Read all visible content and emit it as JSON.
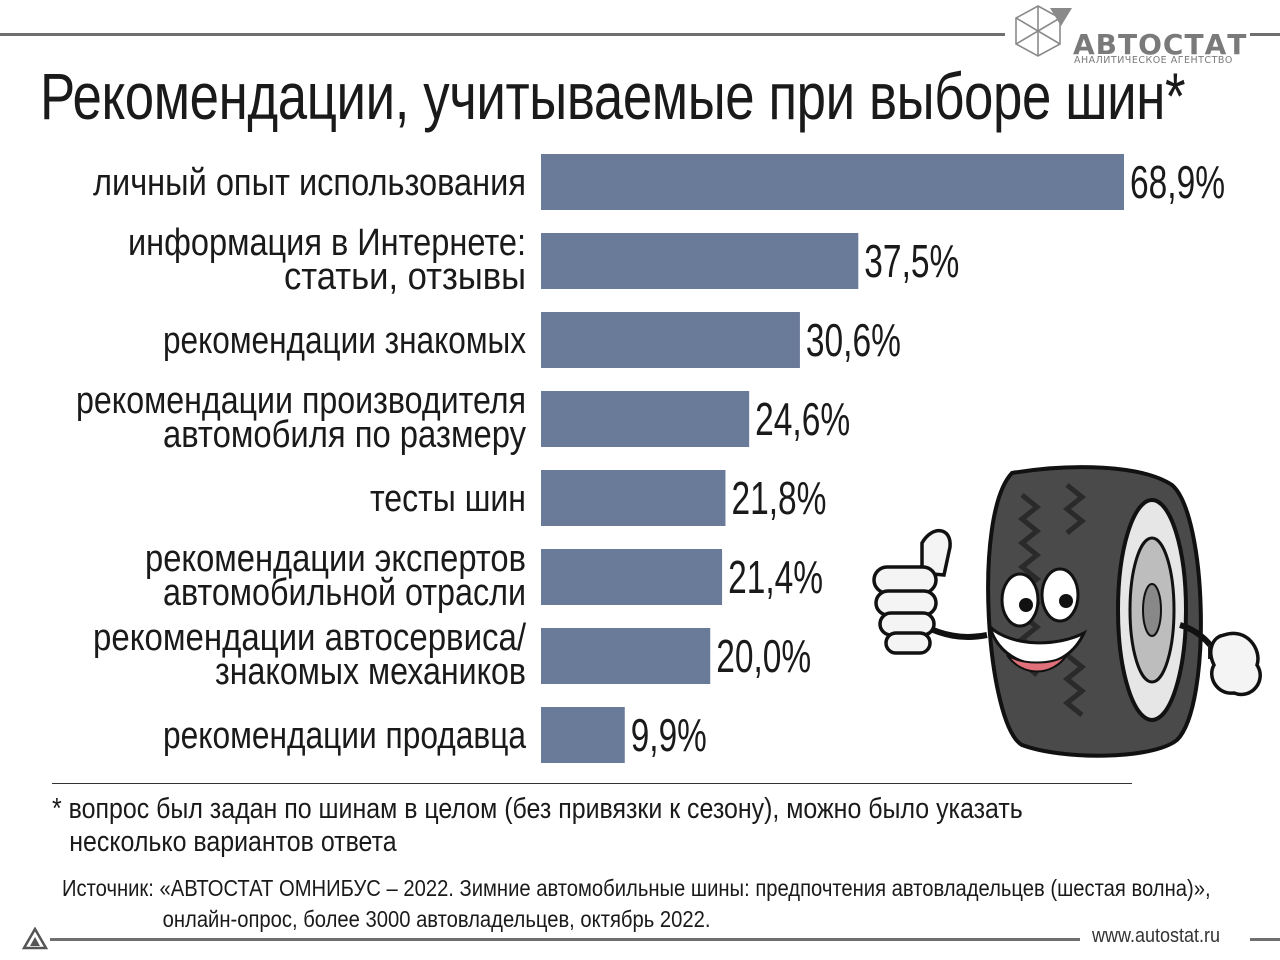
{
  "brand": {
    "name": "АВТОСТАТ",
    "subtitle": "АНАЛИТИЧЕСКОЕ АГЕНТСТВО",
    "website": "www.autostat.ru"
  },
  "colors": {
    "bar": "#6a7b9a",
    "rule": "#6f6f6f"
  },
  "chart_data": {
    "type": "bar",
    "orientation": "horizontal",
    "title": "Рекомендации, учитываемые при выборе шин*",
    "categories": [
      [
        "личный опыт использования"
      ],
      [
        "информация в Интернете:",
        "статьи, отзывы"
      ],
      [
        "рекомендации знакомых"
      ],
      [
        "рекомендации производителя",
        "автомобиля по размеру"
      ],
      [
        "тесты шин"
      ],
      [
        "рекомендации экспертов",
        "автомобильной отрасли"
      ],
      [
        "рекомендации автосервиса/",
        "знакомых механиков"
      ],
      [
        "рекомендации продавца"
      ]
    ],
    "values": [
      68.9,
      37.5,
      30.6,
      24.6,
      21.8,
      21.4,
      20.0,
      9.9
    ],
    "value_labels": [
      "68,9%",
      "37,5%",
      "30,6%",
      "24,6%",
      "21,8%",
      "21,4%",
      "20,0%",
      "9,9%"
    ],
    "xlim": [
      0,
      68.9
    ],
    "grid": false
  },
  "footnote": {
    "line1": "* вопрос был задан по шинам в целом (без привязки к сезону), можно было указать",
    "line2": "несколько вариантов ответа"
  },
  "source": {
    "line1": "Источник: «АВТОСТАТ ОМНИБУС – 2022. Зимние автомобильные шины: предпочтения автовладельцев (шестая волна)»,",
    "line2": "онлайн-опрос, более 3000 автовладельцев, октябрь 2022."
  },
  "icons": {
    "logo": "autostat-logo-icon",
    "mascot": "tire-mascot-icon",
    "corner": "triangle-logo-icon"
  }
}
